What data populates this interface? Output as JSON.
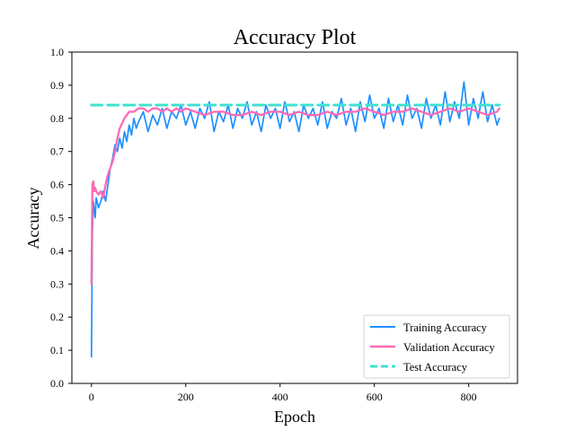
{
  "chart_data": {
    "type": "line",
    "title": "Accuracy Plot",
    "xlabel": "Epoch",
    "ylabel": "Accuracy",
    "xlim": [
      -41.5,
      903.5
    ],
    "ylim": [
      0.0,
      1.0
    ],
    "x_ticks": [
      0,
      200,
      400,
      600,
      800
    ],
    "y_ticks": [
      0.0,
      0.1,
      0.2,
      0.3,
      0.4,
      0.5,
      0.6,
      0.7,
      0.8,
      0.9,
      1.0
    ],
    "x_tick_labels": [
      "0",
      "200",
      "400",
      "600",
      "800"
    ],
    "y_tick_labels": [
      "0.0",
      "0.1",
      "0.2",
      "0.3",
      "0.4",
      "0.5",
      "0.6",
      "0.7",
      "0.8",
      "0.9",
      "1.0"
    ],
    "grid": false,
    "legend_placement": "lower-right",
    "series": [
      {
        "name": "Training Accuracy",
        "color": "#1E90FF",
        "style": "solid",
        "x": [
          0,
          2,
          4,
          6,
          8,
          10,
          15,
          20,
          25,
          30,
          35,
          40,
          45,
          50,
          55,
          60,
          65,
          70,
          75,
          80,
          85,
          90,
          95,
          100,
          110,
          120,
          130,
          140,
          150,
          160,
          170,
          180,
          190,
          200,
          210,
          220,
          230,
          240,
          250,
          260,
          270,
          280,
          290,
          300,
          310,
          320,
          330,
          340,
          350,
          360,
          370,
          380,
          390,
          400,
          410,
          420,
          430,
          440,
          450,
          460,
          470,
          480,
          490,
          500,
          510,
          520,
          530,
          540,
          550,
          560,
          570,
          580,
          590,
          600,
          610,
          620,
          630,
          640,
          650,
          660,
          670,
          680,
          690,
          700,
          710,
          720,
          730,
          740,
          750,
          760,
          770,
          780,
          790,
          800,
          810,
          820,
          830,
          840,
          850,
          860,
          865
        ],
        "y": [
          0.08,
          0.45,
          0.55,
          0.52,
          0.5,
          0.56,
          0.53,
          0.55,
          0.58,
          0.55,
          0.6,
          0.65,
          0.68,
          0.72,
          0.7,
          0.74,
          0.71,
          0.76,
          0.73,
          0.78,
          0.75,
          0.8,
          0.77,
          0.79,
          0.82,
          0.76,
          0.81,
          0.78,
          0.83,
          0.77,
          0.82,
          0.8,
          0.84,
          0.78,
          0.82,
          0.77,
          0.83,
          0.8,
          0.85,
          0.76,
          0.82,
          0.79,
          0.84,
          0.77,
          0.83,
          0.8,
          0.85,
          0.78,
          0.82,
          0.76,
          0.84,
          0.8,
          0.83,
          0.77,
          0.85,
          0.79,
          0.82,
          0.76,
          0.84,
          0.8,
          0.83,
          0.78,
          0.85,
          0.77,
          0.82,
          0.8,
          0.86,
          0.78,
          0.83,
          0.76,
          0.85,
          0.79,
          0.87,
          0.8,
          0.83,
          0.77,
          0.86,
          0.79,
          0.84,
          0.78,
          0.87,
          0.8,
          0.83,
          0.77,
          0.86,
          0.8,
          0.84,
          0.78,
          0.88,
          0.79,
          0.85,
          0.8,
          0.91,
          0.78,
          0.86,
          0.8,
          0.88,
          0.79,
          0.84,
          0.78,
          0.8
        ]
      },
      {
        "name": "Validation Accuracy",
        "color": "#FF69B4",
        "style": "solid",
        "x": [
          0,
          2,
          4,
          6,
          8,
          10,
          15,
          20,
          25,
          30,
          35,
          40,
          45,
          50,
          55,
          60,
          70,
          80,
          90,
          100,
          110,
          120,
          130,
          140,
          150,
          160,
          170,
          180,
          190,
          200,
          220,
          240,
          260,
          280,
          300,
          320,
          340,
          360,
          380,
          400,
          420,
          440,
          460,
          480,
          500,
          520,
          540,
          560,
          580,
          600,
          620,
          640,
          660,
          680,
          700,
          720,
          740,
          760,
          780,
          800,
          820,
          840,
          860,
          865
        ],
        "y": [
          0.3,
          0.6,
          0.61,
          0.58,
          0.59,
          0.58,
          0.57,
          0.58,
          0.56,
          0.6,
          0.63,
          0.65,
          0.67,
          0.7,
          0.74,
          0.77,
          0.8,
          0.82,
          0.82,
          0.83,
          0.83,
          0.82,
          0.83,
          0.83,
          0.82,
          0.83,
          0.82,
          0.83,
          0.82,
          0.83,
          0.82,
          0.81,
          0.82,
          0.82,
          0.81,
          0.81,
          0.82,
          0.81,
          0.82,
          0.82,
          0.81,
          0.82,
          0.81,
          0.81,
          0.82,
          0.81,
          0.82,
          0.82,
          0.83,
          0.82,
          0.81,
          0.82,
          0.82,
          0.83,
          0.82,
          0.81,
          0.82,
          0.83,
          0.82,
          0.83,
          0.82,
          0.81,
          0.82,
          0.83
        ]
      },
      {
        "name": "Test Accuracy",
        "color": "#40E0D0",
        "style": "dashed",
        "x": [
          0,
          865
        ],
        "y": [
          0.84,
          0.84
        ]
      }
    ]
  }
}
